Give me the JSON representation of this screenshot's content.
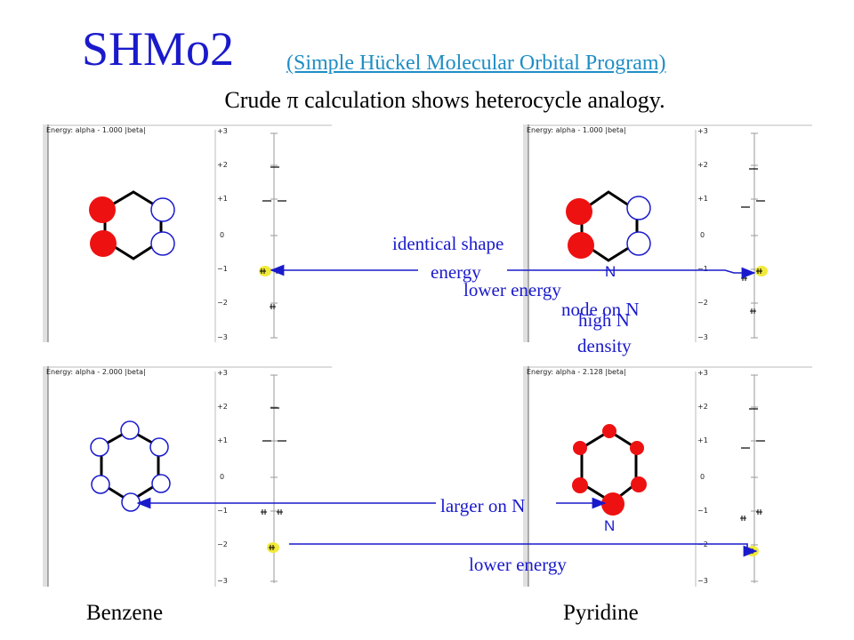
{
  "title": "SHMo2",
  "subtitle_link": "(Simple Hückel Molecular Orbital Program)",
  "caption": "Crude π calculation shows heterocycle analogy.",
  "panels": [
    {
      "energy_text": "Energy: alpha - 1.000 |beta|"
    },
    {
      "energy_text": "Energy: alpha - 1.000 |beta|"
    },
    {
      "energy_text": "Energy: alpha - 2.000 |beta|"
    },
    {
      "energy_text": "Energy: alpha - 2.128 |beta|"
    }
  ],
  "axis_ticks": [
    "+3",
    "+2",
    "+1",
    "0",
    "−1",
    "−2",
    "−3"
  ],
  "annotations": {
    "identical_shape": "identical shape",
    "energy": "energy",
    "lower_energy_top": "lower energy",
    "node_on_n": "node on N",
    "high_n": "high N",
    "density": "density",
    "larger_on_n": "larger on N",
    "lower_energy_bottom": "lower energy",
    "n_top": "N",
    "n_bottom": "N"
  },
  "bottom_labels": {
    "benzene": "Benzene",
    "pyridine": "Pyridine"
  },
  "colors": {
    "title": "#1a1acc",
    "link": "#1f8ec4",
    "arrow": "#1a1acc",
    "lobe_red": "#ee1111",
    "lobe_blue": "#1a1acc",
    "highlight": "#f2ea3a"
  }
}
